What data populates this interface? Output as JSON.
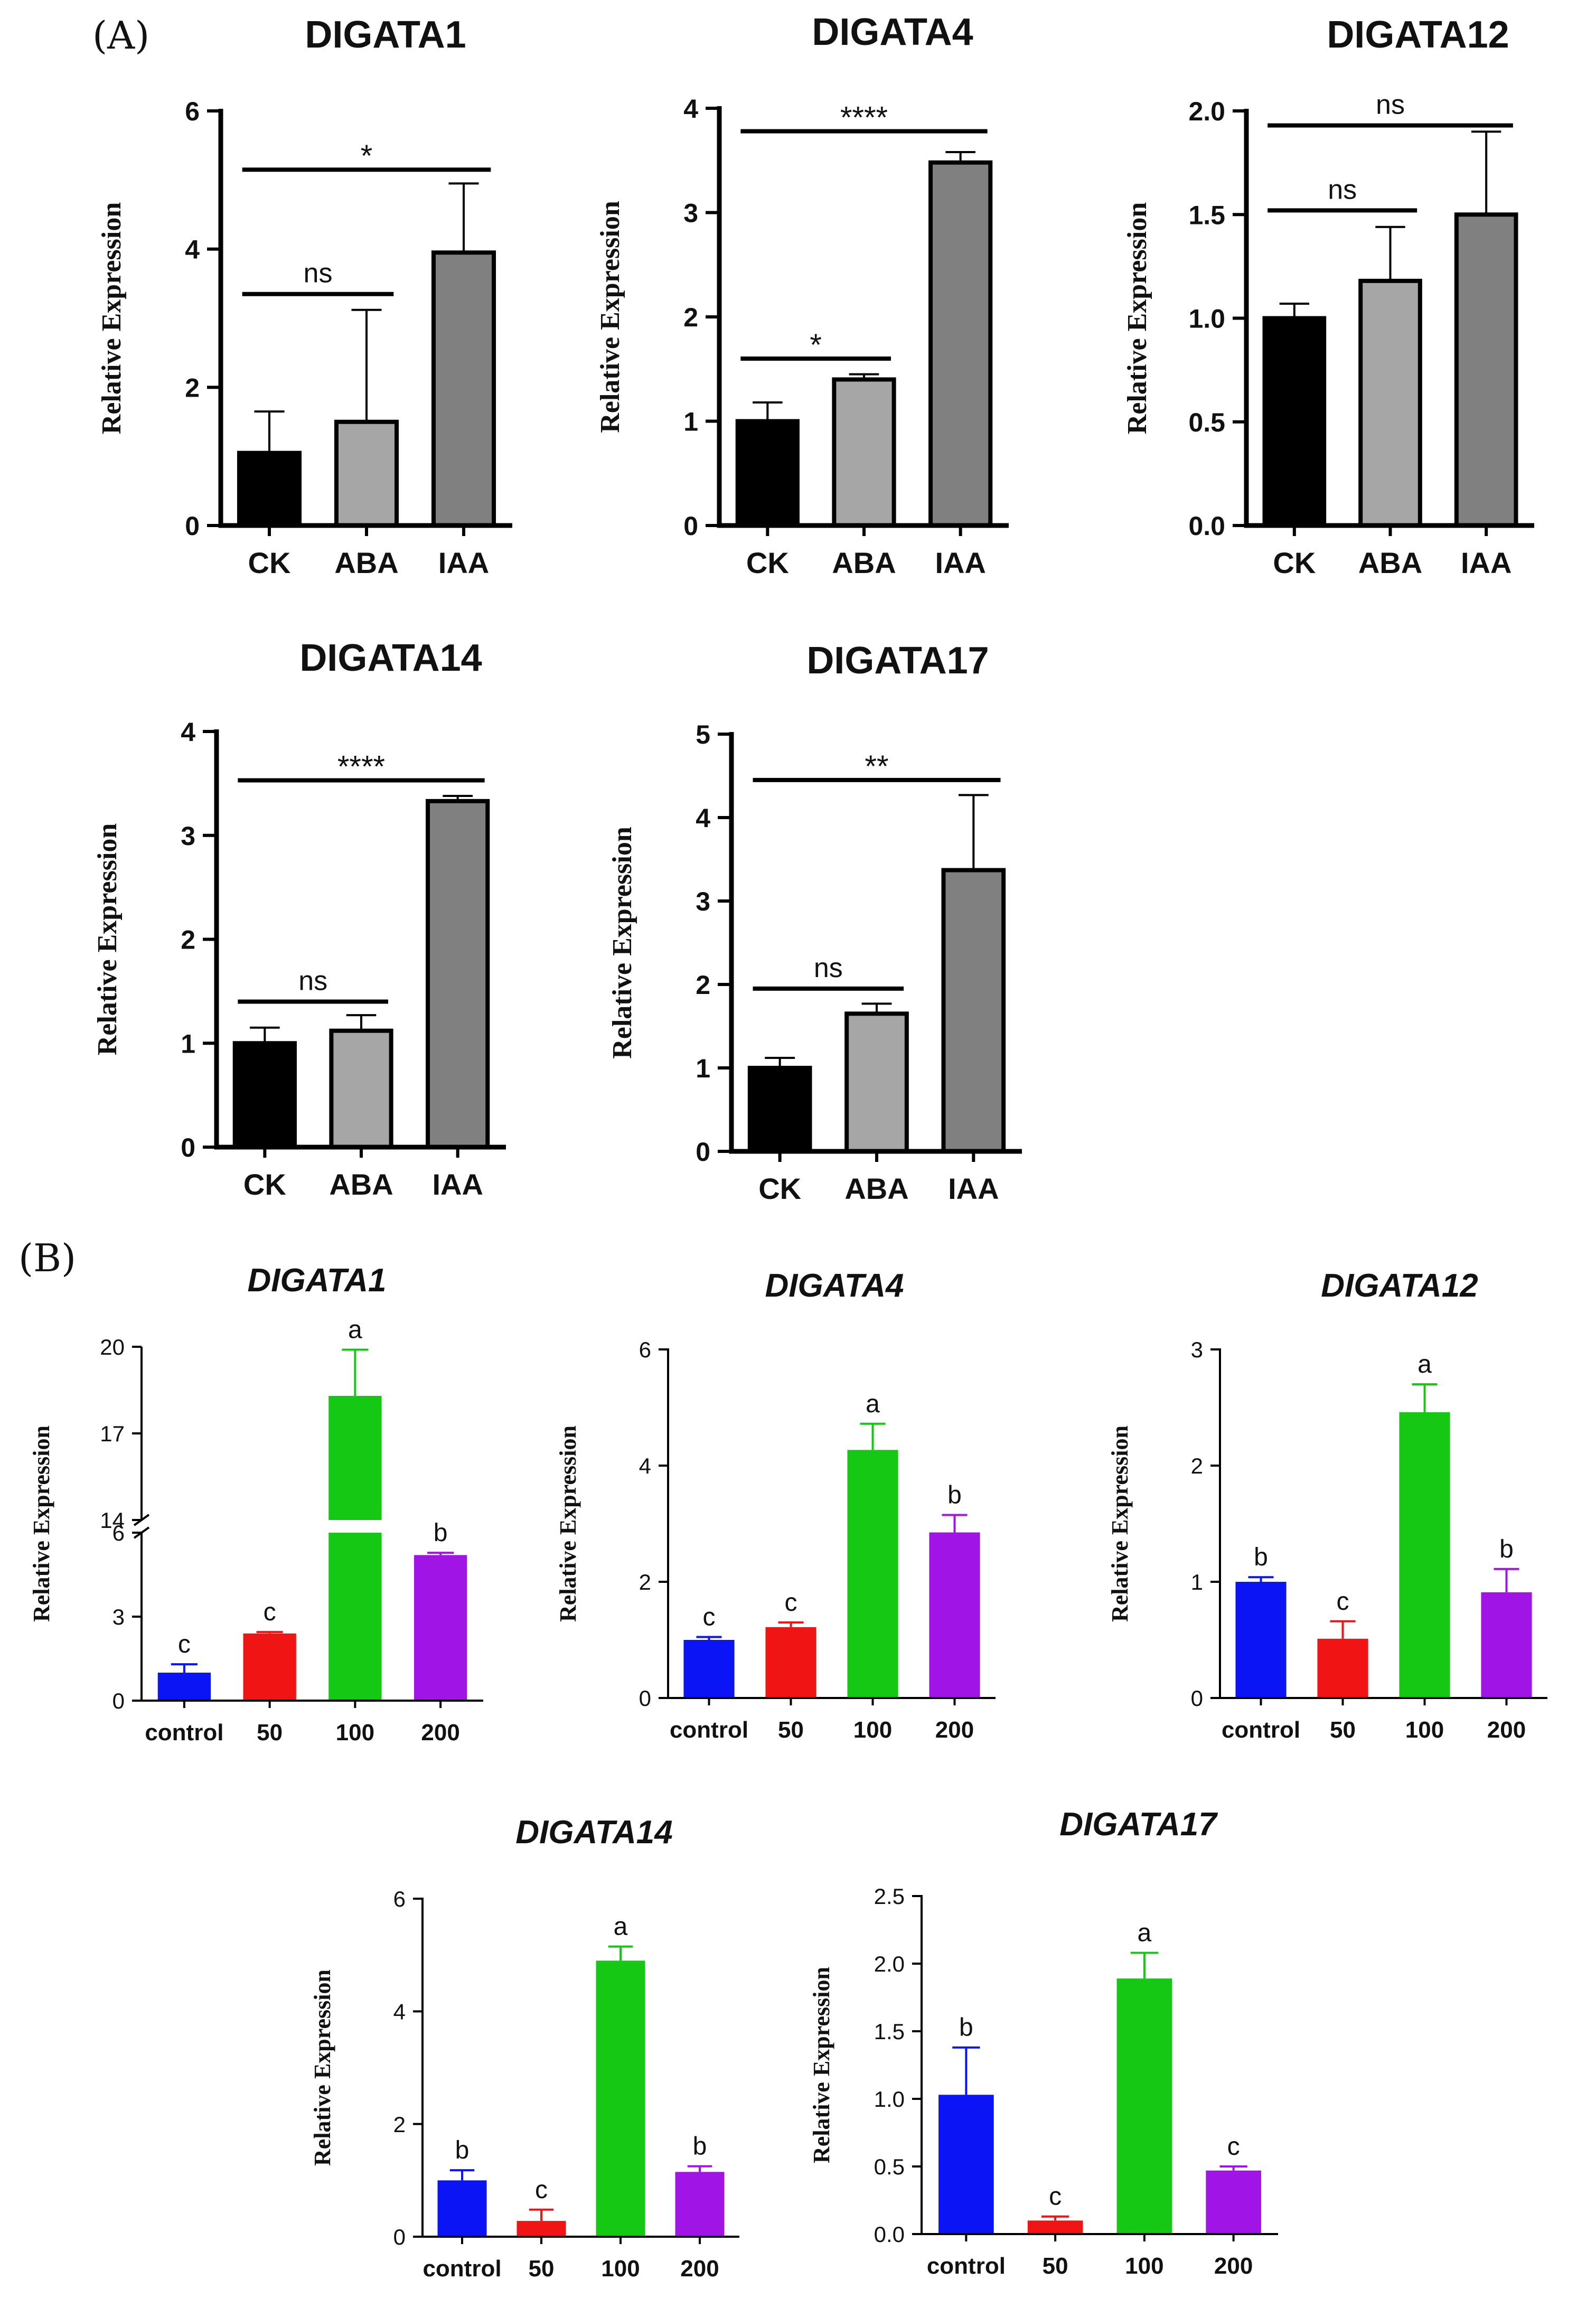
{
  "panel_labels": {
    "a": "(A)",
    "b": "(B)"
  },
  "colors": {
    "ck": "#000000",
    "aba": "#a6a6a6",
    "iaa": "#808080",
    "control": "#0a14f5",
    "c50": "#f01414",
    "c100": "#14c814",
    "c200": "#a014e6"
  },
  "chart_data": [
    {
      "id": "a1",
      "panel": "A",
      "type": "bar",
      "title": "DIGATA1",
      "title_italic": false,
      "ylabel": "Relative Expression",
      "categories": [
        "CK",
        "ABA",
        "IAA"
      ],
      "values": [
        1.05,
        1.5,
        3.95
      ],
      "errors": [
        0.6,
        1.62,
        1.0
      ],
      "colors": [
        "#000000",
        "#a6a6a6",
        "#808080"
      ],
      "ylim": [
        0,
        6
      ],
      "yticks": [
        0,
        2,
        4,
        6
      ],
      "ytick_labels": [
        "0",
        "2",
        "4",
        "6"
      ],
      "brackets": [
        {
          "from": 0,
          "to": 1,
          "y": 3.35,
          "label": "ns"
        },
        {
          "from": 0,
          "to": 2,
          "y": 5.15,
          "label": "*"
        }
      ]
    },
    {
      "id": "a4",
      "panel": "A",
      "type": "bar",
      "title": "DIGATA4",
      "title_italic": false,
      "ylabel": "Relative Expression",
      "categories": [
        "CK",
        "ABA",
        "IAA"
      ],
      "values": [
        1.0,
        1.4,
        3.48
      ],
      "errors": [
        0.18,
        0.05,
        0.1
      ],
      "colors": [
        "#000000",
        "#a6a6a6",
        "#808080"
      ],
      "ylim": [
        0,
        4
      ],
      "yticks": [
        0,
        1,
        2,
        3,
        4
      ],
      "ytick_labels": [
        "0",
        "1",
        "2",
        "3",
        "4"
      ],
      "brackets": [
        {
          "from": 0,
          "to": 1,
          "y": 1.6,
          "label": "*"
        },
        {
          "from": 0,
          "to": 2,
          "y": 3.78,
          "label": "****"
        }
      ]
    },
    {
      "id": "a12",
      "panel": "A",
      "type": "bar",
      "title": "DIGATA12",
      "title_italic": false,
      "ylabel": "Relative Expression",
      "categories": [
        "CK",
        "ABA",
        "IAA"
      ],
      "values": [
        1.0,
        1.18,
        1.5
      ],
      "errors": [
        0.07,
        0.26,
        0.4
      ],
      "colors": [
        "#000000",
        "#a6a6a6",
        "#808080"
      ],
      "ylim": [
        0,
        2
      ],
      "yticks": [
        0,
        0.5,
        1,
        1.5,
        2
      ],
      "ytick_labels": [
        "0.0",
        "0.5",
        "1.0",
        "1.5",
        "2.0"
      ],
      "brackets": [
        {
          "from": 0,
          "to": 1,
          "y": 1.52,
          "label": "ns"
        },
        {
          "from": 0,
          "to": 2,
          "y": 1.93,
          "label": "ns"
        }
      ]
    },
    {
      "id": "a14",
      "panel": "A",
      "type": "bar",
      "title": "DIGATA14",
      "title_italic": false,
      "ylabel": "Relative Expression",
      "categories": [
        "CK",
        "ABA",
        "IAA"
      ],
      "values": [
        1.0,
        1.12,
        3.33
      ],
      "errors": [
        0.15,
        0.15,
        0.05
      ],
      "colors": [
        "#000000",
        "#a6a6a6",
        "#808080"
      ],
      "ylim": [
        0,
        4
      ],
      "yticks": [
        0,
        1,
        2,
        3,
        4
      ],
      "ytick_labels": [
        "0",
        "1",
        "2",
        "3",
        "4"
      ],
      "brackets": [
        {
          "from": 0,
          "to": 1,
          "y": 1.4,
          "label": "ns"
        },
        {
          "from": 0,
          "to": 2,
          "y": 3.53,
          "label": "****"
        }
      ]
    },
    {
      "id": "a17",
      "panel": "A",
      "type": "bar",
      "title": "DIGATA17",
      "title_italic": false,
      "ylabel": "Relative Expression",
      "categories": [
        "CK",
        "ABA",
        "IAA"
      ],
      "values": [
        1.0,
        1.65,
        3.37
      ],
      "errors": [
        0.12,
        0.12,
        0.9
      ],
      "colors": [
        "#000000",
        "#a6a6a6",
        "#808080"
      ],
      "ylim": [
        0,
        5
      ],
      "yticks": [
        0,
        1,
        2,
        3,
        4,
        5
      ],
      "ytick_labels": [
        "0",
        "1",
        "2",
        "3",
        "4",
        "5"
      ],
      "brackets": [
        {
          "from": 0,
          "to": 1,
          "y": 1.95,
          "label": "ns"
        },
        {
          "from": 0,
          "to": 2,
          "y": 4.45,
          "label": "**"
        }
      ]
    },
    {
      "id": "b1",
      "panel": "B",
      "type": "bar",
      "title": "DIGATA1",
      "title_italic": true,
      "ylabel": "Relative Expression",
      "categories": [
        "control",
        "50",
        "100",
        "200"
      ],
      "values": [
        1.0,
        2.4,
        18.3,
        5.2
      ],
      "errors": [
        0.3,
        0.05,
        1.6,
        0.08
      ],
      "letters": [
        "c",
        "c",
        "a",
        "b"
      ],
      "colors": [
        "#0a14f5",
        "#f01414",
        "#14c814",
        "#a014e6"
      ],
      "broken_axis": {
        "lower": [
          0,
          6
        ],
        "upper": [
          14,
          20
        ]
      },
      "yticks": [
        0,
        3,
        6,
        14,
        17,
        20
      ],
      "ytick_labels": [
        "0",
        "3",
        "6",
        "14",
        "17",
        "20"
      ]
    },
    {
      "id": "b4",
      "panel": "B",
      "type": "bar",
      "title": "DIGATA4",
      "title_italic": true,
      "ylabel": "Relative Expression",
      "categories": [
        "control",
        "50",
        "100",
        "200"
      ],
      "values": [
        1.0,
        1.22,
        4.27,
        2.85
      ],
      "errors": [
        0.05,
        0.08,
        0.45,
        0.3
      ],
      "letters": [
        "c",
        "c",
        "a",
        "b"
      ],
      "colors": [
        "#0a14f5",
        "#f01414",
        "#14c814",
        "#a014e6"
      ],
      "ylim": [
        0,
        6
      ],
      "yticks": [
        0,
        2,
        4,
        6
      ],
      "ytick_labels": [
        "0",
        "2",
        "4",
        "6"
      ]
    },
    {
      "id": "b12",
      "panel": "B",
      "type": "bar",
      "title": "DIGATA12",
      "title_italic": true,
      "ylabel": "Relative Expression",
      "categories": [
        "control",
        "50",
        "100",
        "200"
      ],
      "values": [
        1.0,
        0.51,
        2.46,
        0.91
      ],
      "errors": [
        0.04,
        0.15,
        0.24,
        0.2
      ],
      "letters": [
        "b",
        "c",
        "a",
        "b"
      ],
      "colors": [
        "#0a14f5",
        "#f01414",
        "#14c814",
        "#a014e6"
      ],
      "ylim": [
        0,
        3
      ],
      "yticks": [
        0,
        1,
        2,
        3
      ],
      "ytick_labels": [
        "0",
        "1",
        "2",
        "3"
      ]
    },
    {
      "id": "b14",
      "panel": "B",
      "type": "bar",
      "title": "DIGATA14",
      "title_italic": true,
      "ylabel": "Relative Expression",
      "categories": [
        "control",
        "50",
        "100",
        "200"
      ],
      "values": [
        1.0,
        0.28,
        4.9,
        1.15
      ],
      "errors": [
        0.18,
        0.2,
        0.25,
        0.1
      ],
      "letters": [
        "b",
        "c",
        "a",
        "b"
      ],
      "colors": [
        "#0a14f5",
        "#f01414",
        "#14c814",
        "#a014e6"
      ],
      "ylim": [
        0,
        6
      ],
      "yticks": [
        0,
        2,
        4,
        6
      ],
      "ytick_labels": [
        "0",
        "2",
        "4",
        "6"
      ]
    },
    {
      "id": "b17",
      "panel": "B",
      "type": "bar",
      "title": "DIGATA17",
      "title_italic": true,
      "ylabel": "Relative Expression",
      "categories": [
        "control",
        "50",
        "100",
        "200"
      ],
      "values": [
        1.03,
        0.1,
        1.89,
        0.47
      ],
      "errors": [
        0.35,
        0.03,
        0.19,
        0.03
      ],
      "letters": [
        "b",
        "c",
        "a",
        "c"
      ],
      "colors": [
        "#0a14f5",
        "#f01414",
        "#14c814",
        "#a014e6"
      ],
      "ylim": [
        0,
        2.5
      ],
      "yticks": [
        0,
        0.5,
        1,
        1.5,
        2,
        2.5
      ],
      "ytick_labels": [
        "0.0",
        "0.5",
        "1.0",
        "1.5",
        "2.0",
        "2.5"
      ]
    }
  ]
}
